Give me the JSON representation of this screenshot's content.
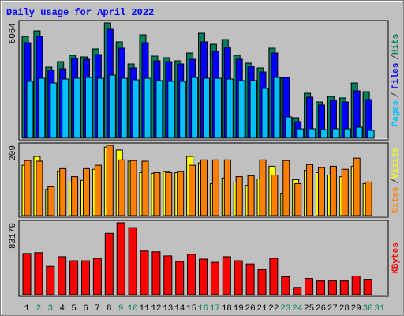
{
  "chart_data": [
    {
      "type": "bar",
      "title": "Daily usage for April 2022",
      "ylim": [
        0,
        6064
      ],
      "yticks": [
        6064
      ],
      "legend_separator": "/",
      "series": [
        {
          "name": "Hits",
          "color": "#00805c",
          "values": [
            5358,
            5648,
            3738,
            4029,
            4361,
            4278,
            4693,
            6064,
            5067,
            3904,
            5441,
            4319,
            4236,
            4070,
            4485,
            5524,
            4942,
            5191,
            4361,
            3946,
            3696,
            4735,
            3198,
            1080,
            2367,
            1910,
            2201,
            2118,
            2907,
            2450,
            null
          ]
        },
        {
          "name": "Files",
          "color": "#0000ff",
          "values": [
            5025,
            5358,
            3572,
            3655,
            4195,
            4153,
            4402,
            5731,
            4735,
            3696,
            5025,
            4070,
            4028,
            3904,
            4153,
            5067,
            4568,
            4776,
            4153,
            3779,
            3489,
            4485,
            3198,
            872,
            2160,
            1744,
            1993,
            1910,
            2492,
            2035,
            null
          ]
        },
        {
          "name": "Pages",
          "color": "#00c0ff",
          "values": [
            2990,
            3156,
            2907,
            3115,
            3156,
            3198,
            3156,
            3322,
            3156,
            3073,
            3156,
            3032,
            2990,
            2990,
            3198,
            3156,
            3156,
            3115,
            3032,
            3032,
            2616,
            3198,
            1121,
            498,
            498,
            457,
            498,
            498,
            581,
            415,
            null
          ]
        }
      ]
    },
    {
      "type": "bar",
      "ylim": [
        0,
        209
      ],
      "yticks": [
        209
      ],
      "legend_separator": "/",
      "series": [
        {
          "name": "Visits",
          "color": "#ffff00",
          "values": [
            150,
            176,
            78,
            131,
            100,
            105,
            138,
            204,
            195,
            162,
            128,
            126,
            131,
            128,
            176,
            157,
            95,
            112,
            100,
            90,
            109,
            147,
            67,
            107,
            135,
            128,
            121,
            116,
            147,
            95,
            null
          ]
        },
        {
          "name": "Sites",
          "color": "#ff8000",
          "values": [
            164,
            162,
            86,
            140,
            116,
            140,
            150,
            209,
            166,
            164,
            162,
            128,
            128,
            131,
            150,
            166,
            166,
            166,
            116,
            119,
            166,
            121,
            164,
            95,
            152,
            143,
            147,
            138,
            171,
            100,
            null
          ]
        }
      ]
    },
    {
      "type": "bar",
      "ylim": [
        0,
        83179
      ],
      "yticks": [
        83179
      ],
      "categories": [
        "1",
        "2",
        "3",
        "4",
        "5",
        "6",
        "7",
        "8",
        "9",
        "10",
        "11",
        "12",
        "13",
        "14",
        "15",
        "16",
        "17",
        "18",
        "19",
        "20",
        "21",
        "22",
        "23",
        "24",
        "25",
        "26",
        "27",
        "28",
        "29",
        "30",
        "31"
      ],
      "category_colors": [
        "#000000",
        "#00805c",
        "#00805c",
        "#000000",
        "#000000",
        "#000000",
        "#000000",
        "#000000",
        "#00805c",
        "#00805c",
        "#000000",
        "#000000",
        "#000000",
        "#000000",
        "#000000",
        "#00805c",
        "#00805c",
        "#000000",
        "#000000",
        "#000000",
        "#000000",
        "#000000",
        "#00805c",
        "#00805c",
        "#000000",
        "#000000",
        "#000000",
        "#000000",
        "#000000",
        "#00805c",
        "#00805c"
      ],
      "series": [
        {
          "name": "KBytes",
          "color": "#ff0000",
          "values": [
            47665,
            48599,
            32711,
            43926,
            39253,
            39253,
            42057,
            71030,
            83179,
            77572,
            50468,
            49534,
            44861,
            38319,
            46730,
            41122,
            37384,
            43926,
            39253,
            35515,
            28973,
            42057,
            20561,
            8411,
            18692,
            15888,
            15888,
            15888,
            21496,
            17757,
            null
          ]
        }
      ]
    }
  ]
}
